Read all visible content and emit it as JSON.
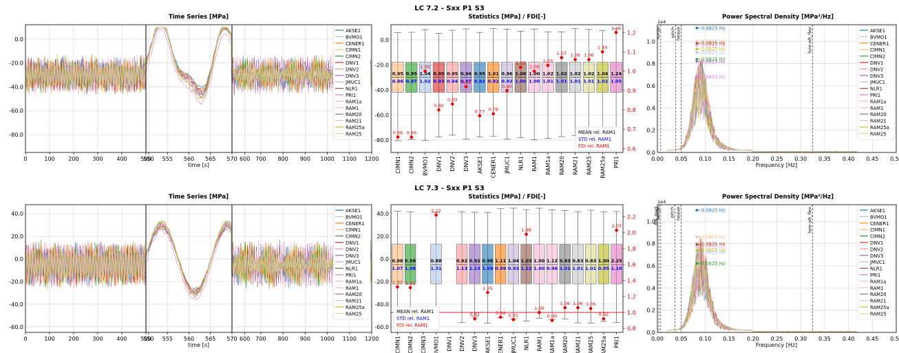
{
  "colors": {
    "AKSE1": "#1f77b4",
    "BVMO1": "#aec7e8",
    "CENER1": "#ff7f0e",
    "CIMN1": "#ffbb78",
    "CIMN2": "#2ca02c",
    "DNV1": "#d62728",
    "DNV2": "#ff9896",
    "DNV3": "#9467bd",
    "JMUC1": "#c5b0d5",
    "NLR1": "#8c564b",
    "PRI1": "#e377c2",
    "RAM1a": "#f7b6d2",
    "RAM1": "#f7b6d2",
    "RAM20": "#7f7f7f",
    "RAM21": "#c7c7c7",
    "RAM25a": "#bcbd22",
    "RAM25": "#dbdb8d"
  },
  "panels": [
    {
      "suptitle": "LC 7.2 - Sxx P1 S3",
      "chart_data": [
        {
          "type": "line",
          "title": "Time Series [MPa]",
          "xlabel": "time [s]",
          "xlim": [
            0,
            1200
          ],
          "ylim": [
            -95,
            12
          ],
          "break_ticks": [
            "0",
            "100",
            "200",
            "300",
            "400",
            "500",
            "550",
            "555",
            "560",
            "565",
            "570",
            "600",
            "700",
            "800",
            "900",
            "1000",
            "1100",
            "1200"
          ],
          "yticks": [
            "0.0",
            "-20.0",
            "-40.0",
            "-60.0",
            "-80.0"
          ],
          "legend": [
            "AKSE1",
            "BVMO1",
            "CENER1",
            "CIMN1",
            "CIMN2",
            "DNV1",
            "DNV2",
            "DNV3",
            "JMUC1",
            "NLR1",
            "PRI1",
            "RAM1a",
            "RAM1",
            "RAM20",
            "RAM21",
            "RAM25a",
            "RAM25"
          ],
          "legend_loc": "right"
        },
        {
          "type": "box",
          "title": "Statistics [MPa] / FDI[-]",
          "categories": [
            "CIMN1",
            "CIMN2",
            "BVMO1",
            "DNV1",
            "DNV2",
            "DNV3",
            "AKSE1",
            "CENER1",
            "JMUC1",
            "NLR1",
            "RAM1",
            "RAM1a",
            "RAM20",
            "RAM21",
            "RAM25",
            "RAM25a",
            "PRI1"
          ],
          "ylim": [
            -90,
            12
          ],
          "yticks": [
            "0.0",
            "-20.0",
            "-40.0",
            "-60.0",
            "-80.0"
          ],
          "y2lim": [
            0.58,
            1.24
          ],
          "y2ticks": [
            "1.2",
            "1.1",
            "1.0",
            "0.9",
            "0.8",
            "0.7",
            "0.6"
          ],
          "mean_rel": [
            "0.95",
            "0.95",
            "1.04",
            "0.95",
            "0.95",
            "0.94",
            "0.95",
            "1.01",
            "0.96",
            "1.00",
            "1.00",
            "1.02",
            "1.02",
            "1.02",
            "1.02",
            "1.04",
            "1.24"
          ],
          "std_rel": [
            "0.86",
            "0.87",
            "1.02",
            "0.93",
            "0.94",
            "0.97",
            "0.92",
            "0.92",
            "0.92",
            "1.00",
            "1.00",
            "1.01",
            "1.01",
            "1.01",
            "1.01",
            "1.02",
            "1.05"
          ],
          "fdi_rel": [
            "0.66",
            "0.66",
            "1.00",
            "0.80",
            "0.83",
            "0.92",
            "0.77",
            "0.78",
            "0.90",
            "1.02",
            "1.00",
            "1.03",
            "1.07",
            "1.06",
            "1.06",
            "1.10",
            "1.20"
          ],
          "legend": [
            "MEAN rel. RAM1",
            "STD rel. RAM1",
            "FDI rel. RAM1"
          ],
          "legend_loc": "lower right"
        },
        {
          "type": "line",
          "title": "Power Spectral Density [MPa²/Hz]",
          "xlabel": "Frequency [Hz]",
          "xlim": [
            0,
            0.5
          ],
          "xticks": [
            "0.00",
            "0.05",
            "0.10",
            "0.15",
            "0.20",
            "0.25",
            "0.30",
            "0.35",
            "0.40",
            "0.45",
            "0.50"
          ],
          "ylim": [
            0,
            1.15
          ],
          "yticks": [
            "0.0",
            "0.2",
            "0.4",
            "0.6",
            "0.8",
            "1.0"
          ],
          "exponent": "1e4",
          "vlines": [
            "surge",
            "pitch",
            "heave",
            "fore-aft_flex"
          ],
          "peak_labels": [
            "0.0825 Hz",
            "0.0825 Hz",
            "0.0825 Hz",
            "0.0825 Hz",
            "0.0825 Hz",
            "0.0825 Hz",
            "0.0825 Hz",
            "0.0825 Hz",
            "0.0825 Hz",
            "0.0825 Hz"
          ],
          "legend": [
            "AKSE1",
            "BVMO1",
            "CENER1",
            "CIMN1",
            "CIMN2",
            "DNV1",
            "DNV2",
            "DNV3",
            "JMUC1",
            "NLR1",
            "PRI1",
            "RAM1a",
            "RAM1",
            "RAM20",
            "RAM21",
            "RAM25a",
            "RAM25"
          ],
          "legend_loc": "right"
        }
      ]
    },
    {
      "suptitle": "LC 7.3 - Sxx P1 S3",
      "chart_data": [
        {
          "type": "line",
          "title": "Time Series [MPa]",
          "xlabel": "time [s]",
          "xlim": [
            0,
            1200
          ],
          "ylim": [
            -65,
            48
          ],
          "break_ticks": [
            "0",
            "100",
            "200",
            "300",
            "400",
            "500",
            "550",
            "555",
            "560",
            "565",
            "570",
            "600",
            "700",
            "800",
            "900",
            "1000",
            "1100",
            "1200"
          ],
          "yticks": [
            "40.0",
            "20.0",
            "0.0",
            "-20.0",
            "-40.0",
            "-60.0"
          ],
          "legend": [
            "AKSE1",
            "BVMO1",
            "CENER1",
            "CIMN1",
            "CIMN2",
            "DNV1",
            "DNV2",
            "DNV3",
            "JMUC1",
            "NLR1",
            "PRI1",
            "RAM1a",
            "RAM1",
            "RAM20",
            "RAM21",
            "RAM25a",
            "RAM25"
          ],
          "legend_loc": "right"
        },
        {
          "type": "box",
          "title": "Statistics [MPa] / FDI[-]",
          "categories": [
            "CIMN1",
            "CIMN2",
            "CIMN3",
            "BVMO1",
            "DNV1",
            "DNV2",
            "DNV3",
            "AKSE1",
            "CENER1",
            "JMUC1",
            "NLR1",
            "RAM1",
            "RAM1a",
            "RAM20",
            "RAM21",
            "RAM25",
            "RAM25a",
            "PRI1"
          ],
          "ylim": [
            -65,
            48
          ],
          "yticks": [
            "40.0",
            "20.0",
            "0.0",
            "-20.0",
            "-40.0",
            "-60.0"
          ],
          "y2lim": [
            0.75,
            2.35
          ],
          "y2ticks": [
            "2.2",
            "2.0",
            "1.8",
            "1.6",
            "1.4",
            "1.2",
            "1.0",
            "0.8"
          ],
          "mean_rel": [
            "0.98",
            "0.98",
            "",
            "0.88",
            "",
            "0.92",
            "0.92",
            "0.98",
            "1.11",
            "1.04",
            "1.03",
            "1.00",
            "1.12",
            "0.83",
            "0.83",
            "0.83",
            "1.00",
            "2.25"
          ],
          "std_rel": [
            "1.07",
            "1.08",
            "",
            "1.31",
            "",
            "1.13",
            "1.13",
            "1.09",
            "0.99",
            "0.93",
            "1.22",
            "1.00",
            "0.96",
            "1.01",
            "1.01",
            "1.01",
            "0.95",
            "1.10"
          ],
          "fdi_rel": [
            "1.32",
            "1.31",
            "",
            "2.22",
            "",
            "",
            "0.92",
            "1.25",
            "0.94",
            "0.91",
            "1.98",
            "1.00",
            "0.90",
            "1.06",
            "1.06",
            "1.05",
            "0.92",
            "2.03"
          ],
          "legend": [
            "MEAN rel. RAM1",
            "STD rel. RAM1",
            "FDI rel. RAM1"
          ],
          "legend_loc": "lower left"
        },
        {
          "type": "line",
          "title": "Power Spectral Density [MPa²/Hz]",
          "xlabel": "Frequency [Hz]",
          "xlim": [
            0,
            0.5
          ],
          "xticks": [
            "0.00",
            "0.05",
            "0.10",
            "0.15",
            "0.20",
            "0.25",
            "0.30",
            "0.35",
            "0.40",
            "0.45",
            "0.50"
          ],
          "ylim": [
            0,
            1.15
          ],
          "yticks": [
            "0.0",
            "0.2",
            "0.4",
            "0.6",
            "0.8",
            "1.0"
          ],
          "exponent": "1e4",
          "vlines": [
            "BN_load",
            "surge",
            "pitch",
            "heave",
            "fore-aft_flex"
          ],
          "peak_labels": [
            "0.0825 Hz",
            "0.0825 Hz",
            "0.0825 Hz",
            "0.0825 Hz",
            "0.0825 Hz",
            "0.0825 Hz",
            "0.0825 Hz",
            "0.0825 Hz"
          ],
          "legend": [
            "AKSE1",
            "BVMO1",
            "CENER1",
            "CIMN1",
            "CIMN2",
            "DNV1",
            "DNV2",
            "DNV3",
            "JMUC1",
            "NLR1",
            "PRI1",
            "RAM1a",
            "RAM1",
            "RAM20",
            "RAM21",
            "RAM25a",
            "RAM25"
          ],
          "legend_loc": "right"
        }
      ]
    }
  ]
}
